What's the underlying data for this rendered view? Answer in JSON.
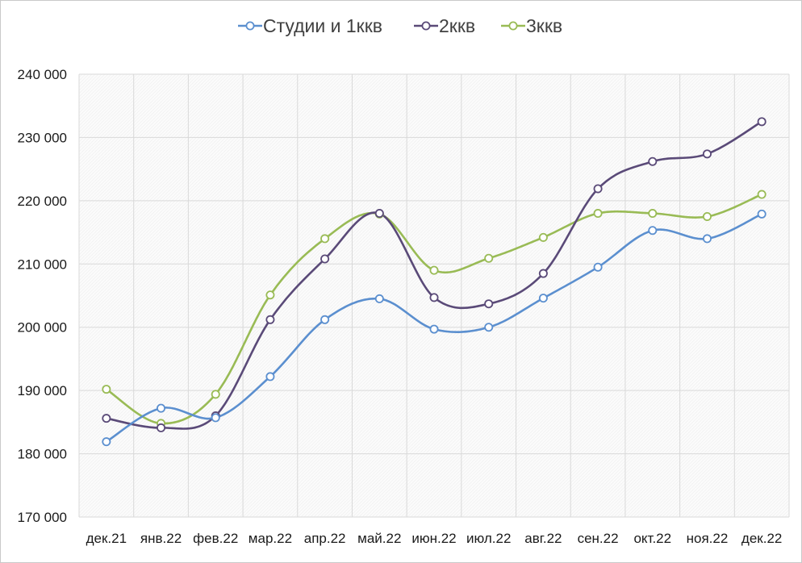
{
  "chart_data": {
    "type": "line",
    "title": "",
    "xlabel": "",
    "ylabel": "",
    "categories": [
      "дек.21",
      "янв.22",
      "фев.22",
      "мар.22",
      "апр.22",
      "май.22",
      "июн.22",
      "июл.22",
      "авг.22",
      "сен.22",
      "окт.22",
      "ноя.22",
      "дек.22"
    ],
    "ylim": [
      170000,
      240000
    ],
    "yticks": [
      170000,
      180000,
      190000,
      200000,
      210000,
      220000,
      230000,
      240000
    ],
    "ytick_labels": [
      "170 000",
      "180 000",
      "190 000",
      "200 000",
      "210 000",
      "220 000",
      "230 000",
      "240 000"
    ],
    "grid": true,
    "smooth": true,
    "legend_position": "top",
    "series": [
      {
        "name": "Студии и 1ккв",
        "color": "#5b8fcf",
        "values": [
          181900,
          187200,
          185700,
          192200,
          201200,
          204500,
          199700,
          200000,
          204600,
          209500,
          215300,
          214000,
          217900
        ]
      },
      {
        "name": "2ккв",
        "color": "#5a4a78",
        "values": [
          185600,
          184100,
          186000,
          201200,
          210800,
          218000,
          204700,
          203700,
          208500,
          221900,
          226200,
          227400,
          232500
        ]
      },
      {
        "name": "3ккв",
        "color": "#99bb55",
        "values": [
          190200,
          184800,
          189400,
          205100,
          214000,
          217900,
          209000,
          210900,
          214200,
          218000,
          218000,
          217500,
          221000
        ]
      }
    ]
  }
}
